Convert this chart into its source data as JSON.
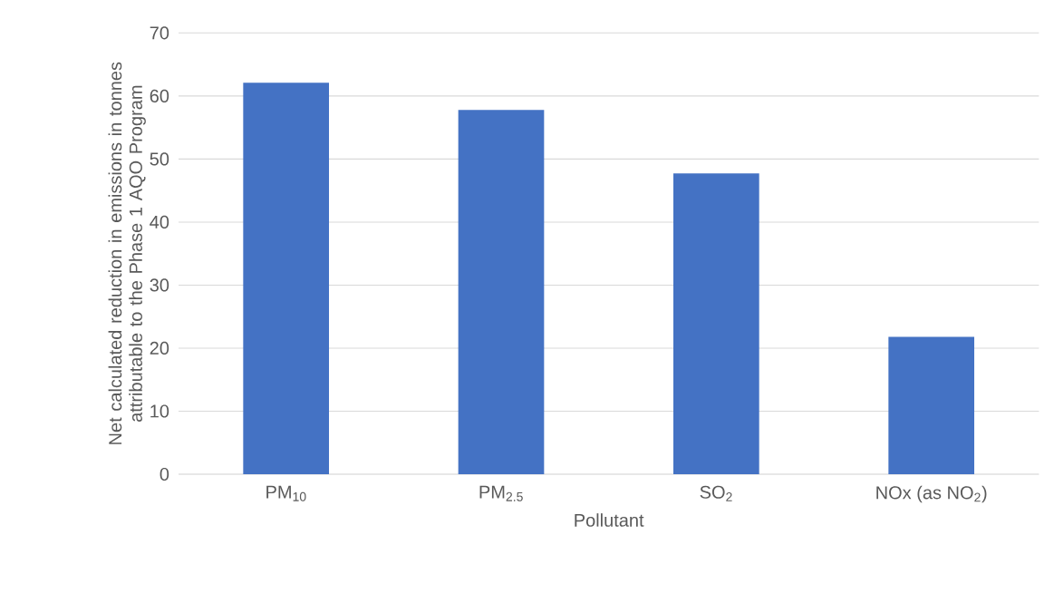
{
  "chart_data": {
    "type": "bar",
    "xlabel": "Pollutant",
    "ylabel": "Net calculated reduction in emissions in tonnes attributable to the Phase 1 AQO Program",
    "categories": [
      "PM$_{10}$",
      "PM$_{2.5}$",
      "SO$_{2}$",
      "NOx (as NO$_{2}$)"
    ],
    "values": [
      62.1,
      57.8,
      47.7,
      21.8
    ],
    "color": "#4472c4",
    "ylim": [
      0,
      70
    ],
    "yticks": [
      0,
      10,
      20,
      30,
      40,
      50,
      60,
      70
    ],
    "grid": "y"
  }
}
